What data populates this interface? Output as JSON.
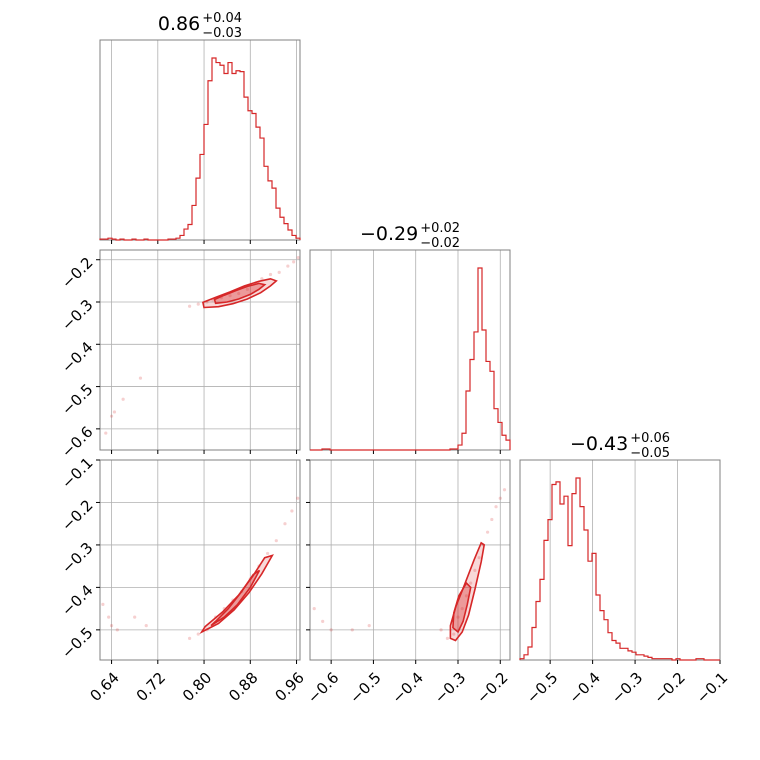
{
  "colors": {
    "series": "#d62728",
    "grid": "#b0b0b0",
    "frame": "#808080"
  },
  "chart_data": {
    "type": "corner",
    "grid": true,
    "parameters": [
      {
        "title": {
          "median": "0.86",
          "upper": "+0.04",
          "lower": "−0.03"
        },
        "range": [
          0.62,
          0.966
        ],
        "ticks": [
          0.64,
          0.72,
          0.8,
          0.88,
          0.96
        ],
        "tick_labels": [
          "0.64",
          "0.72",
          "0.80",
          "0.88",
          "0.96"
        ]
      },
      {
        "title": {
          "median": "−0.29",
          "upper": "+0.02",
          "lower": "−0.02"
        },
        "range": [
          -0.65,
          -0.177
        ],
        "ticks": [
          -0.6,
          -0.5,
          -0.4,
          -0.3,
          -0.2
        ],
        "tick_labels": [
          "−0.6",
          "−0.5",
          "−0.4",
          "−0.3",
          "−0.2"
        ]
      },
      {
        "title": {
          "median": "−0.43",
          "upper": "+0.06",
          "lower": "−0.05"
        },
        "range": [
          -0.571,
          -0.1
        ],
        "ticks": [
          -0.5,
          -0.4,
          -0.3,
          -0.2,
          -0.1
        ],
        "tick_labels": [
          "−0.5",
          "−0.4",
          "−0.3",
          "−0.2",
          "−0.1"
        ]
      }
    ],
    "histograms": [
      {
        "param": 0,
        "bin_start": 0.62,
        "bin_width": 0.00692,
        "counts": [
          1,
          1,
          2,
          1,
          0,
          1,
          0,
          0,
          1,
          0,
          0,
          1,
          0,
          0,
          0,
          0,
          0,
          1,
          1,
          2,
          5,
          12,
          17,
          38,
          68,
          94,
          127,
          175,
          200,
          195,
          192,
          183,
          195,
          183,
          186,
          185,
          157,
          142,
          139,
          124,
          112,
          81,
          65,
          57,
          35,
          25,
          18,
          11,
          5,
          2
        ]
      },
      {
        "param": 1,
        "bin_start": -0.65,
        "bin_width": 0.00946,
        "counts": [
          0,
          0,
          0,
          1,
          1,
          0,
          0,
          0,
          0,
          0,
          0,
          0,
          0,
          0,
          0,
          0,
          0,
          0,
          0,
          0,
          0,
          0,
          0,
          0,
          0,
          0,
          0,
          0,
          0,
          0,
          0,
          0,
          0,
          0,
          0,
          1,
          1,
          5,
          17,
          60,
          92,
          120,
          185,
          122,
          90,
          80,
          42,
          28,
          15,
          10
        ]
      },
      {
        "param": 2,
        "bin_start": -0.571,
        "bin_width": 0.00942,
        "counts": [
          1,
          4,
          10,
          25,
          45,
          62,
          92,
          108,
          135,
          137,
          120,
          126,
          88,
          128,
          140,
          118,
          100,
          76,
          82,
          50,
          38,
          31,
          21,
          15,
          13,
          9,
          9,
          7,
          6,
          4,
          4,
          3,
          2,
          1,
          1,
          1,
          1,
          1,
          0,
          1,
          0,
          0,
          0,
          0,
          1,
          1,
          0,
          0,
          0,
          0
        ]
      }
    ],
    "pairs": [
      {
        "x_param": 0,
        "y_param": 1,
        "points": [
          [
            0.63,
            -0.61
          ],
          [
            0.64,
            -0.57
          ],
          [
            0.645,
            -0.56
          ],
          [
            0.66,
            -0.53
          ],
          [
            0.69,
            -0.48
          ],
          [
            0.775,
            -0.31
          ],
          [
            0.79,
            -0.305
          ],
          [
            0.805,
            -0.3
          ],
          [
            0.815,
            -0.295
          ],
          [
            0.83,
            -0.29
          ],
          [
            0.845,
            -0.285
          ],
          [
            0.86,
            -0.28
          ],
          [
            0.875,
            -0.27
          ],
          [
            0.89,
            -0.255
          ],
          [
            0.9,
            -0.245
          ],
          [
            0.915,
            -0.235
          ],
          [
            0.93,
            -0.23
          ],
          [
            0.945,
            -0.215
          ],
          [
            0.955,
            -0.205
          ],
          [
            0.963,
            -0.195
          ]
        ],
        "contour_inner": [
          [
            0.82,
            -0.303
          ],
          [
            0.84,
            -0.3
          ],
          [
            0.86,
            -0.293
          ],
          [
            0.88,
            -0.282
          ],
          [
            0.895,
            -0.27
          ],
          [
            0.905,
            -0.259
          ],
          [
            0.895,
            -0.256
          ],
          [
            0.875,
            -0.263
          ],
          [
            0.855,
            -0.273
          ],
          [
            0.835,
            -0.284
          ],
          [
            0.818,
            -0.294
          ]
        ],
        "contour_outer": [
          [
            0.8,
            -0.313
          ],
          [
            0.825,
            -0.311
          ],
          [
            0.85,
            -0.304
          ],
          [
            0.875,
            -0.293
          ],
          [
            0.898,
            -0.278
          ],
          [
            0.915,
            -0.262
          ],
          [
            0.925,
            -0.25
          ],
          [
            0.915,
            -0.245
          ],
          [
            0.895,
            -0.251
          ],
          [
            0.87,
            -0.262
          ],
          [
            0.845,
            -0.276
          ],
          [
            0.82,
            -0.289
          ],
          [
            0.798,
            -0.301
          ]
        ]
      },
      {
        "x_param": 0,
        "y_param": 2,
        "points": [
          [
            0.625,
            -0.44
          ],
          [
            0.635,
            -0.47
          ],
          [
            0.64,
            -0.49
          ],
          [
            0.65,
            -0.5
          ],
          [
            0.68,
            -0.47
          ],
          [
            0.7,
            -0.49
          ],
          [
            0.775,
            -0.52
          ],
          [
            0.79,
            -0.51
          ],
          [
            0.805,
            -0.5
          ],
          [
            0.82,
            -0.47
          ],
          [
            0.835,
            -0.45
          ],
          [
            0.85,
            -0.43
          ],
          [
            0.865,
            -0.41
          ],
          [
            0.88,
            -0.38
          ],
          [
            0.895,
            -0.35
          ],
          [
            0.91,
            -0.32
          ],
          [
            0.925,
            -0.29
          ],
          [
            0.94,
            -0.25
          ],
          [
            0.952,
            -0.22
          ],
          [
            0.962,
            -0.19
          ]
        ],
        "contour_inner": [
          [
            0.812,
            -0.49
          ],
          [
            0.835,
            -0.47
          ],
          [
            0.858,
            -0.44
          ],
          [
            0.88,
            -0.4
          ],
          [
            0.896,
            -0.36
          ],
          [
            0.885,
            -0.37
          ],
          [
            0.865,
            -0.41
          ],
          [
            0.842,
            -0.45
          ],
          [
            0.82,
            -0.48
          ]
        ],
        "contour_outer": [
          [
            0.796,
            -0.505
          ],
          [
            0.825,
            -0.485
          ],
          [
            0.852,
            -0.453
          ],
          [
            0.878,
            -0.412
          ],
          [
            0.9,
            -0.368
          ],
          [
            0.918,
            -0.325
          ],
          [
            0.905,
            -0.33
          ],
          [
            0.885,
            -0.372
          ],
          [
            0.86,
            -0.418
          ],
          [
            0.832,
            -0.458
          ],
          [
            0.802,
            -0.492
          ]
        ]
      },
      {
        "x_param": 1,
        "y_param": 2,
        "points": [
          [
            -0.64,
            -0.45
          ],
          [
            -0.62,
            -0.48
          ],
          [
            -0.6,
            -0.5
          ],
          [
            -0.55,
            -0.5
          ],
          [
            -0.51,
            -0.49
          ],
          [
            -0.34,
            -0.5
          ],
          [
            -0.325,
            -0.52
          ],
          [
            -0.31,
            -0.51
          ],
          [
            -0.3,
            -0.47
          ],
          [
            -0.29,
            -0.45
          ],
          [
            -0.28,
            -0.42
          ],
          [
            -0.27,
            -0.39
          ],
          [
            -0.26,
            -0.36
          ],
          [
            -0.25,
            -0.33
          ],
          [
            -0.24,
            -0.3
          ],
          [
            -0.23,
            -0.27
          ],
          [
            -0.22,
            -0.24
          ],
          [
            -0.21,
            -0.21
          ],
          [
            -0.2,
            -0.19
          ],
          [
            -0.19,
            -0.17
          ]
        ],
        "contour_inner": [
          [
            -0.3,
            -0.505
          ],
          [
            -0.288,
            -0.48
          ],
          [
            -0.278,
            -0.44
          ],
          [
            -0.27,
            -0.4
          ],
          [
            -0.28,
            -0.39
          ],
          [
            -0.298,
            -0.42
          ],
          [
            -0.31,
            -0.46
          ],
          [
            -0.312,
            -0.495
          ]
        ],
        "contour_outer": [
          [
            -0.306,
            -0.525
          ],
          [
            -0.29,
            -0.505
          ],
          [
            -0.275,
            -0.465
          ],
          [
            -0.26,
            -0.405
          ],
          [
            -0.245,
            -0.34
          ],
          [
            -0.238,
            -0.3
          ],
          [
            -0.245,
            -0.295
          ],
          [
            -0.262,
            -0.335
          ],
          [
            -0.285,
            -0.395
          ],
          [
            -0.305,
            -0.445
          ],
          [
            -0.318,
            -0.49
          ],
          [
            -0.318,
            -0.52
          ]
        ]
      }
    ]
  }
}
